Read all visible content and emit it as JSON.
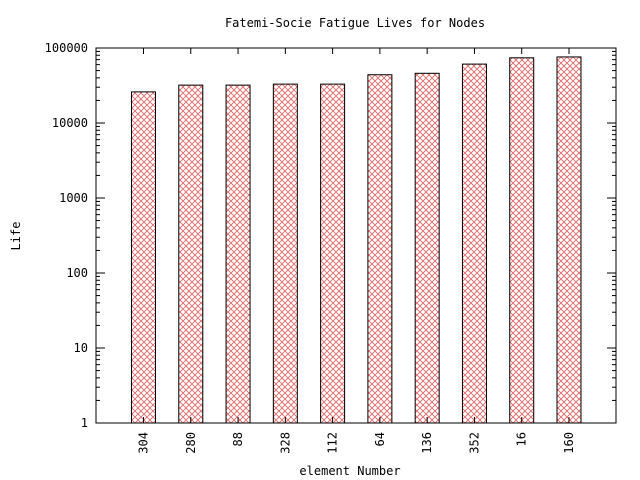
{
  "chart_data": {
    "type": "bar",
    "title": "Fatemi-Socie Fatigue Lives for Nodes",
    "xlabel": "element Number",
    "ylabel": "Life",
    "yscale": "log",
    "ylim": [
      1,
      100000
    ],
    "ytick_values": [
      1,
      10,
      100,
      1000,
      10000,
      100000
    ],
    "ytick_labels": [
      "1",
      "10",
      "100",
      "1000",
      "10000",
      "100000"
    ],
    "categories": [
      "304",
      "280",
      "88",
      "328",
      "112",
      "64",
      "136",
      "352",
      "16",
      "160"
    ],
    "values": [
      26000,
      32000,
      32000,
      33000,
      33000,
      44000,
      46000,
      61000,
      74000,
      76000
    ],
    "grid": false,
    "legend": "none",
    "bar_fill_pattern": "crosshatch",
    "bar_pattern_color": "#e06060",
    "bar_edge_color": "#000000"
  }
}
